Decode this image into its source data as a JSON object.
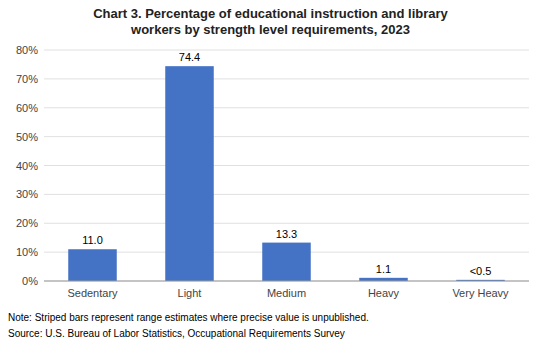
{
  "chart_data": {
    "type": "bar",
    "title": "Chart 3. Percentage of educational instruction and library\nworkers by strength level requirements, 2023",
    "categories": [
      "Sedentary",
      "Light",
      "Medium",
      "Heavy",
      "Very Heavy"
    ],
    "values": [
      11.0,
      74.4,
      13.3,
      1.1,
      0.4
    ],
    "value_labels": [
      "11.0",
      "74.4",
      "13.3",
      "1.1",
      "<0.5"
    ],
    "data_labels": true,
    "color": "#4472C4",
    "ylim": [
      0,
      80
    ],
    "yticks": [
      {
        "value": 0,
        "label": "0%"
      },
      {
        "value": 10,
        "label": "10%"
      },
      {
        "value": 20,
        "label": "20%"
      },
      {
        "value": 30,
        "label": "30%"
      },
      {
        "value": 40,
        "label": "40%"
      },
      {
        "value": 50,
        "label": "50%"
      },
      {
        "value": 60,
        "label": "60%"
      },
      {
        "value": 70,
        "label": "70%"
      },
      {
        "value": 80,
        "label": "80%"
      }
    ],
    "grid": true,
    "annotations": [
      "Note: Striped bars represent range estimates where precise value is unpublished.",
      "Source: U.S. Bureau of Labor Statistics, Occupational Requirements Survey"
    ]
  }
}
